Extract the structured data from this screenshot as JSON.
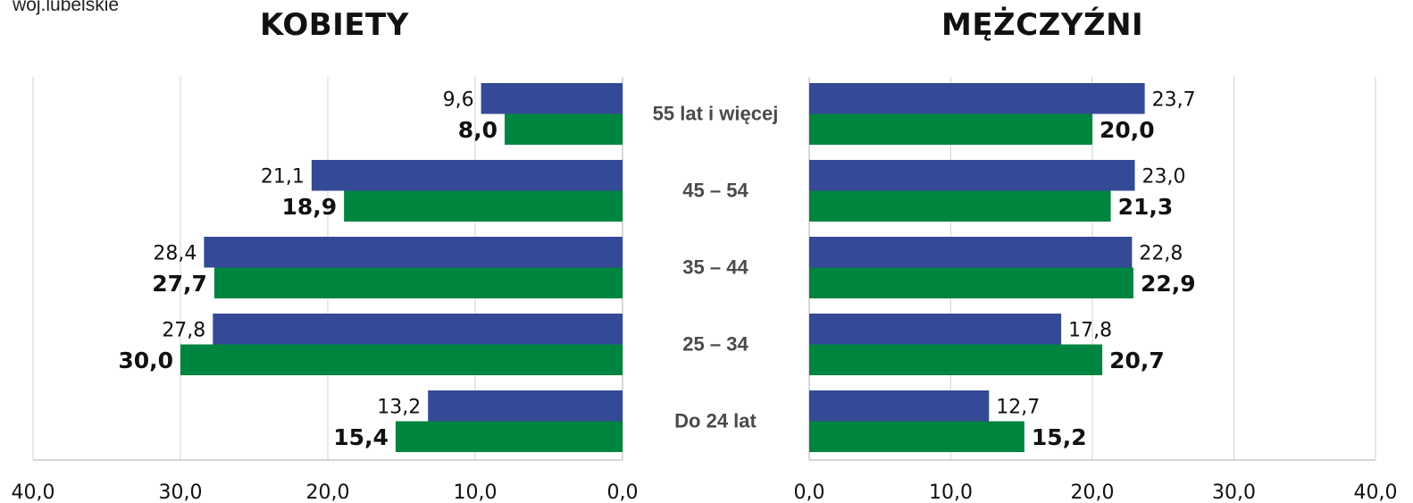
{
  "region": "woj.lubelskie",
  "colors": {
    "series_a": "#344a97",
    "series_b": "#008540",
    "grid": "#d9d9d9",
    "axis": "#bfbfbf"
  },
  "chart_data": [
    {
      "type": "bar",
      "orientation": "horizontal",
      "direction": "right-to-left",
      "title": "KOBIETY",
      "categories": [
        "55 lat i więcej",
        "45 – 54",
        "35 – 44",
        "25 – 34",
        "Do 24 lat"
      ],
      "series": [
        {
          "values": [
            9.6,
            21.1,
            28.4,
            27.8,
            13.2
          ]
        },
        {
          "values": [
            8.0,
            18.9,
            27.7,
            30.0,
            15.4
          ]
        }
      ],
      "xlim": [
        0,
        40
      ],
      "ticks": [
        "40,0",
        "30,0",
        "20,0",
        "10,0",
        "0,0"
      ],
      "grid": true
    },
    {
      "type": "bar",
      "orientation": "horizontal",
      "direction": "left-to-right",
      "title": "MĘŻCZYŹNI",
      "categories": [
        "55 lat i więcej",
        "45 – 54",
        "35 – 44",
        "25 – 34",
        "Do 24 lat"
      ],
      "series": [
        {
          "values": [
            23.7,
            23.0,
            22.8,
            17.8,
            12.7
          ]
        },
        {
          "values": [
            20.0,
            21.3,
            22.9,
            20.7,
            15.2
          ]
        }
      ],
      "xlim": [
        0,
        40
      ],
      "ticks": [
        "0,0",
        "10,0",
        "20,0",
        "30,0",
        "40,0"
      ],
      "grid": true
    }
  ]
}
